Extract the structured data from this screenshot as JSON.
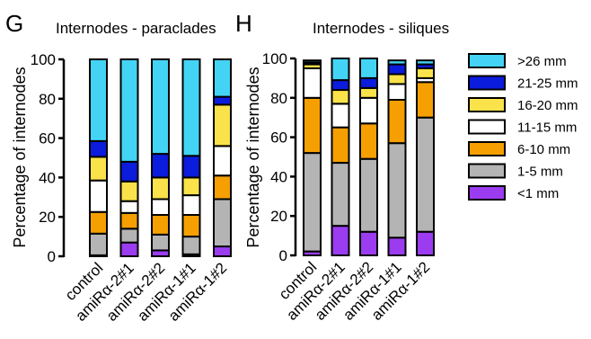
{
  "chart_data": [
    {
      "type": "bar",
      "stacked": true,
      "panel_letter": "G",
      "title": "Internodes - paraclades",
      "ylabel": "Percentage of internodes",
      "xlabel": "",
      "ylim": [
        0,
        100
      ],
      "yticks": [
        0,
        20,
        40,
        60,
        80,
        100
      ],
      "grid": false,
      "categories": [
        "control",
        "amiRα-2#1",
        "amiRα-2#2",
        "amiRα-1#1",
        "amiRα-1#2"
      ],
      "series": [
        {
          "name": "<1 mm",
          "color": "#9b3cf0",
          "values": [
            0.5,
            7,
            3,
            1,
            5
          ]
        },
        {
          "name": "1-5 mm",
          "color": "#b4b4b4",
          "values": [
            11,
            7,
            8,
            9,
            24
          ]
        },
        {
          "name": "6-10 mm",
          "color": "#f5a000",
          "values": [
            11,
            8,
            10,
            11,
            12
          ]
        },
        {
          "name": "11-15 mm",
          "color": "#ffffff",
          "values": [
            16,
            6,
            8,
            10,
            15
          ]
        },
        {
          "name": "16-20 mm",
          "color": "#fae24a",
          "values": [
            12,
            10,
            11,
            9,
            21
          ]
        },
        {
          "name": "21-25 mm",
          "color": "#0b1cdc",
          "values": [
            8,
            10,
            12,
            11,
            4
          ]
        },
        {
          "name": ">26 mm",
          "color": "#43d4f5",
          "values": [
            41.5,
            52,
            48,
            49,
            19
          ]
        }
      ]
    },
    {
      "type": "bar",
      "stacked": true,
      "panel_letter": "H",
      "title": "Internodes - siliques",
      "ylabel": "Percentage of internodes",
      "xlabel": "",
      "ylim": [
        0,
        100
      ],
      "yticks": [
        0,
        20,
        40,
        60,
        80,
        100
      ],
      "grid": false,
      "legend_position": "right",
      "categories": [
        "control",
        "amiRα-2#1",
        "amiRα-2#2",
        "amiRα-1#1",
        "amiRα-1#2"
      ],
      "series": [
        {
          "name": "<1 mm",
          "color": "#9b3cf0",
          "values": [
            2,
            15,
            12,
            9,
            12
          ]
        },
        {
          "name": "1-5 mm",
          "color": "#b4b4b4",
          "values": [
            50,
            32,
            37,
            48,
            58
          ]
        },
        {
          "name": "6-10 mm",
          "color": "#f5a000",
          "values": [
            28,
            18,
            18,
            22,
            18
          ]
        },
        {
          "name": "11-15 mm",
          "color": "#ffffff",
          "values": [
            15,
            12,
            13,
            8,
            2
          ]
        },
        {
          "name": "16-20 mm",
          "color": "#fae24a",
          "values": [
            2,
            7,
            5,
            5,
            5
          ]
        },
        {
          "name": "21-25 mm",
          "color": "#0b1cdc",
          "values": [
            1,
            5,
            5,
            5,
            2
          ]
        },
        {
          "name": ">26 mm",
          "color": "#43d4f5",
          "values": [
            1,
            11,
            10,
            2,
            2
          ]
        }
      ]
    }
  ]
}
